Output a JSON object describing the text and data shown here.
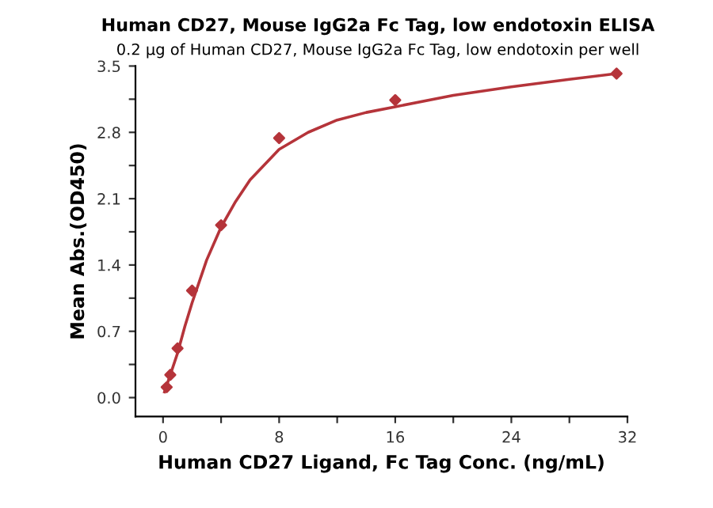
{
  "chart_data": {
    "type": "scatter",
    "title": "Human CD27, Mouse IgG2a Fc Tag, low endotoxin ELISA",
    "subtitle": "0.2 μg of Human CD27, Mouse IgG2a Fc Tag, low endotoxin per well",
    "xlabel": "Human CD27 Ligand, Fc Tag Conc. (ng/mL)",
    "ylabel": "Mean Abs.(OD450)",
    "series": [
      {
        "color": "#b5343a",
        "marker": "diamond",
        "x": [
          0.25,
          0.5,
          1,
          2,
          4,
          8,
          16,
          31.25
        ],
        "values": [
          0.11,
          0.24,
          0.52,
          1.13,
          1.82,
          2.74,
          3.14,
          3.42
        ]
      },
      {
        "type": "line",
        "color": "#b5343a",
        "marker": "none",
        "line_style": "solid",
        "x": [
          0.1,
          0.5,
          1,
          1.5,
          2,
          3,
          4,
          5,
          6,
          8,
          10,
          12,
          14,
          16,
          20,
          24,
          28,
          31.25
        ],
        "values": [
          0.06,
          0.24,
          0.47,
          0.75,
          1.0,
          1.45,
          1.8,
          2.07,
          2.3,
          2.62,
          2.8,
          2.93,
          3.01,
          3.07,
          3.19,
          3.28,
          3.36,
          3.42
        ]
      }
    ],
    "xlim": [
      -1.9,
      32
    ],
    "ylim": [
      -0.2,
      3.5
    ],
    "xticks": [
      0,
      {
        "value": 4,
        "label": null
      },
      8,
      {
        "value": 12,
        "label": null
      },
      16,
      {
        "value": 20,
        "label": null
      },
      24,
      {
        "value": 28,
        "label": null
      },
      32
    ],
    "yticks": [
      {
        "value": 0,
        "label": "0.0"
      },
      {
        "value": 0.35,
        "label": null
      },
      0.7,
      {
        "value": 1.05,
        "label": null
      },
      1.4,
      {
        "value": 1.75,
        "label": null
      },
      2.1,
      {
        "value": 2.45,
        "label": null
      },
      2.8,
      {
        "value": 3.15,
        "label": null
      },
      3.5
    ],
    "grid": false,
    "legend": false
  }
}
